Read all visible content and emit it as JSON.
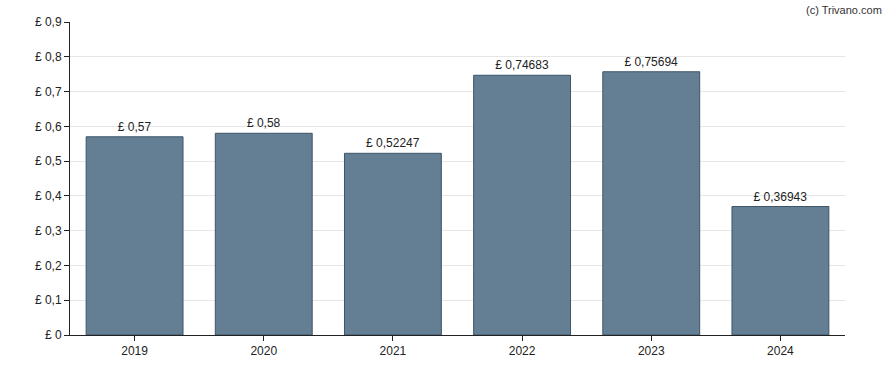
{
  "chart_data": {
    "type": "bar",
    "annotations": [
      "(c) Trivano.com"
    ],
    "categories": [
      "2019",
      "2020",
      "2021",
      "2022",
      "2023",
      "2024"
    ],
    "values": [
      0.57,
      0.58,
      0.52247,
      0.74683,
      0.75694,
      0.36943
    ],
    "value_labels": [
      "£ 0,57",
      "£ 0,58",
      "£ 0,52247",
      "£ 0,74683",
      "£ 0,75694",
      "£ 0,36943"
    ],
    "color": "#647f94",
    "ylim": [
      0,
      0.9
    ],
    "yticks": [
      {
        "value": 0,
        "label": "£ 0"
      },
      {
        "value": 0.1,
        "label": "£ 0,1"
      },
      {
        "value": 0.2,
        "label": "£ 0,2"
      },
      {
        "value": 0.3,
        "label": "£ 0,3"
      },
      {
        "value": 0.4,
        "label": "£ 0,4"
      },
      {
        "value": 0.5,
        "label": "£ 0,5"
      },
      {
        "value": 0.6,
        "label": "£ 0,6"
      },
      {
        "value": 0.7,
        "label": "£ 0,7"
      },
      {
        "value": 0.8,
        "label": "£ 0,8"
      },
      {
        "value": 0.9,
        "label": "£ 0,9"
      }
    ],
    "grid": true,
    "data_labels": true
  }
}
